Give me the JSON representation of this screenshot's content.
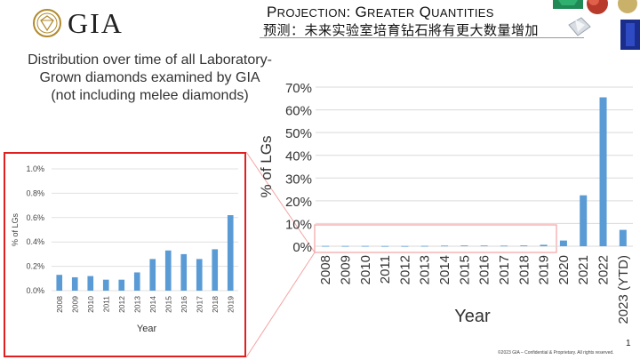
{
  "header": {
    "logo_text": "GIA",
    "title_en_parts": [
      {
        "text": "P",
        "size": "big"
      },
      {
        "text": "ROJECTION",
        "size": "small"
      },
      {
        "text": ": G",
        "size": "big"
      },
      {
        "text": "REATER",
        "size": "small"
      },
      {
        "text": " Q",
        "size": "big"
      },
      {
        "text": "UANTITIES",
        "size": "small"
      }
    ],
    "title_zh": "预测：未来实验室培育钻石將有更大数量增加"
  },
  "subtitle_lines": [
    "Distribution over time of all Laboratory-",
    "Grown diamonds examined by GIA",
    "(not including melee diamonds)"
  ],
  "footer": "©2023 GIA – Confidential & Proprietary. All rights reserved.",
  "page_number": "1",
  "colors": {
    "bar": "#5b9bd5",
    "inset_border": "#e02020",
    "callout": "#f4a3a3"
  },
  "chart_data": [
    {
      "type": "bar",
      "categories": [
        "2008",
        "2009",
        "2010",
        "2011",
        "2012",
        "2013",
        "2014",
        "2015",
        "2016",
        "2017",
        "2018",
        "2019",
        "2020",
        "2021",
        "2022",
        "2023 (YTD)"
      ],
      "values": [
        0.13,
        0.11,
        0.12,
        0.09,
        0.09,
        0.15,
        0.26,
        0.33,
        0.3,
        0.26,
        0.34,
        0.62,
        2.5,
        22.4,
        65.5,
        7.2
      ],
      "unit": "%",
      "xlabel": "Year",
      "ylabel": "% of LGs",
      "ylim": [
        0,
        70
      ],
      "yticks": [
        0,
        10,
        20,
        30,
        40,
        50,
        60,
        70
      ],
      "ytick_labels": [
        "0%",
        "10%",
        "20%",
        "30%",
        "40%",
        "50%",
        "60%",
        "70%"
      ],
      "grid": true
    },
    {
      "type": "bar",
      "categories": [
        "2008",
        "2009",
        "2010",
        "2011",
        "2012",
        "2013",
        "2014",
        "2015",
        "2016",
        "2017",
        "2018",
        "2019"
      ],
      "values": [
        0.13,
        0.11,
        0.12,
        0.09,
        0.09,
        0.15,
        0.26,
        0.33,
        0.3,
        0.26,
        0.34,
        0.62
      ],
      "unit": "%",
      "xlabel": "Year",
      "ylabel": "% of LGs",
      "ylim": [
        0,
        1.0
      ],
      "yticks": [
        0,
        0.2,
        0.4,
        0.6,
        0.8,
        1.0
      ],
      "ytick_labels": [
        "0.0%",
        "0.2%",
        "0.4%",
        "0.6%",
        "0.8%",
        "1.0%"
      ],
      "grid": true
    }
  ]
}
